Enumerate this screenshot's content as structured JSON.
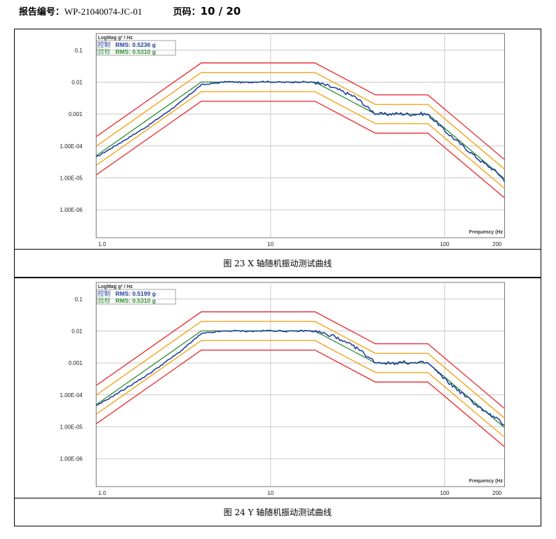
{
  "header": {
    "report_label": "报告编号：",
    "report_number": "WP-21040074-JC-01",
    "page_label": "页码：",
    "page_value": "10 / 20"
  },
  "colors": {
    "control": "#1f3f9f",
    "reference": "#2e8b2e",
    "abort": "#e8333a",
    "alarm": "#f2a51c",
    "grid": "#c8c8c8"
  },
  "chart_data": [
    {
      "type": "line",
      "caption": "图 23 X 轴随机振动测试曲线",
      "ylabel": "LogMag g² / Hz",
      "xlabel": "Frequency (Hz",
      "x_scale": "log",
      "y_scale": "log",
      "xlim": [
        1,
        220
      ],
      "ylim": [
        2e-07,
        0.3
      ],
      "x_ticks": [
        {
          "v": 1,
          "label": "1.0"
        },
        {
          "v": 10,
          "label": "10"
        },
        {
          "v": 100,
          "label": "100"
        },
        {
          "v": 200,
          "label": "200"
        }
      ],
      "y_ticks": [
        {
          "v": 0.1,
          "label": "0.1"
        },
        {
          "v": 0.01,
          "label": "0.01"
        },
        {
          "v": 0.001,
          "label": "0.001"
        },
        {
          "v": 0.0001,
          "label": "1.00E-04"
        },
        {
          "v": 1e-05,
          "label": "1.00E-05"
        },
        {
          "v": 1e-06,
          "label": "1.00E-06"
        }
      ],
      "grid": true,
      "legend": [
        {
          "name": "控制",
          "rms_label": "RMS: 0.5236 g",
          "color": "#1f3f9f"
        },
        {
          "name": "目标",
          "rms_label": "RMS: 0.5310 g",
          "color": "#2e8b2e"
        }
      ],
      "profile": {
        "x": [
          1,
          4,
          18,
          40,
          80,
          220
        ],
        "y": [
          5e-05,
          0.01,
          0.01,
          0.001,
          0.001,
          9.5e-06
        ]
      },
      "alarm_factor_db": 3,
      "abort_factor_db": 6,
      "control_noise_points": [
        [
          5,
          0.0095
        ],
        [
          5.6,
          0.0103
        ],
        [
          7,
          0.0097
        ],
        [
          9,
          0.0104
        ],
        [
          12,
          0.0098
        ],
        [
          15,
          0.0102
        ],
        [
          18,
          0.0097
        ],
        [
          20,
          0.0085
        ],
        [
          22,
          0.0072
        ],
        [
          25,
          0.0055
        ],
        [
          28,
          0.0042
        ],
        [
          30,
          0.0036
        ],
        [
          33,
          0.0025
        ],
        [
          36,
          0.0016
        ],
        [
          40,
          0.00105
        ],
        [
          45,
          0.00098
        ],
        [
          55,
          0.00103
        ],
        [
          65,
          0.00097
        ],
        [
          75,
          0.00102
        ],
        [
          80,
          0.00095
        ],
        [
          90,
          0.00055
        ],
        [
          100,
          0.0003
        ],
        [
          130,
          9e-05
        ],
        [
          160,
          3.5e-05
        ],
        [
          200,
          1.5e-05
        ],
        [
          220,
          8.5e-06
        ]
      ]
    },
    {
      "type": "line",
      "caption": "图 24 Y 轴随机振动测试曲线",
      "ylabel": "LogMag g² / Hz",
      "xlabel": "Frequency (Hz",
      "x_scale": "log",
      "y_scale": "log",
      "xlim": [
        1,
        220
      ],
      "ylim": [
        2e-07,
        0.3
      ],
      "x_ticks": [
        {
          "v": 1,
          "label": "1.0"
        },
        {
          "v": 10,
          "label": "10"
        },
        {
          "v": 100,
          "label": "100"
        },
        {
          "v": 200,
          "label": "200"
        }
      ],
      "y_ticks": [
        {
          "v": 0.1,
          "label": "0.1"
        },
        {
          "v": 0.01,
          "label": "0.01"
        },
        {
          "v": 0.001,
          "label": "0.001"
        },
        {
          "v": 0.0001,
          "label": "1.00E-04"
        },
        {
          "v": 1e-05,
          "label": "1.00E-05"
        },
        {
          "v": 1e-06,
          "label": "1.00E-06"
        }
      ],
      "grid": true,
      "legend": [
        {
          "name": "控制",
          "rms_label": "RMS: 0.5199 g",
          "color": "#1f3f9f"
        },
        {
          "name": "目标",
          "rms_label": "RMS: 0.5310 g",
          "color": "#2e8b2e"
        }
      ],
      "profile": {
        "x": [
          1,
          4,
          18,
          40,
          80,
          220
        ],
        "y": [
          5e-05,
          0.01,
          0.01,
          0.001,
          0.001,
          9.5e-06
        ]
      },
      "alarm_factor_db": 3,
      "abort_factor_db": 6,
      "control_noise_points": [
        [
          5,
          0.0096
        ],
        [
          6,
          0.0101
        ],
        [
          8,
          0.0098
        ],
        [
          10,
          0.0103
        ],
        [
          13,
          0.0097
        ],
        [
          16,
          0.0102
        ],
        [
          18,
          0.0096
        ],
        [
          20,
          0.0088
        ],
        [
          22,
          0.0065
        ],
        [
          23,
          0.008
        ],
        [
          25,
          0.005
        ],
        [
          28,
          0.004
        ],
        [
          32,
          0.0027
        ],
        [
          36,
          0.0016
        ],
        [
          40,
          0.00105
        ],
        [
          48,
          0.00097
        ],
        [
          58,
          0.00104
        ],
        [
          68,
          0.00098
        ],
        [
          78,
          0.00102
        ],
        [
          82,
          0.0009
        ],
        [
          95,
          0.0004
        ],
        [
          110,
          0.0002
        ],
        [
          140,
          7e-05
        ],
        [
          170,
          3e-05
        ],
        [
          200,
          1.75e-05
        ],
        [
          220,
          1.1e-05
        ]
      ]
    }
  ]
}
